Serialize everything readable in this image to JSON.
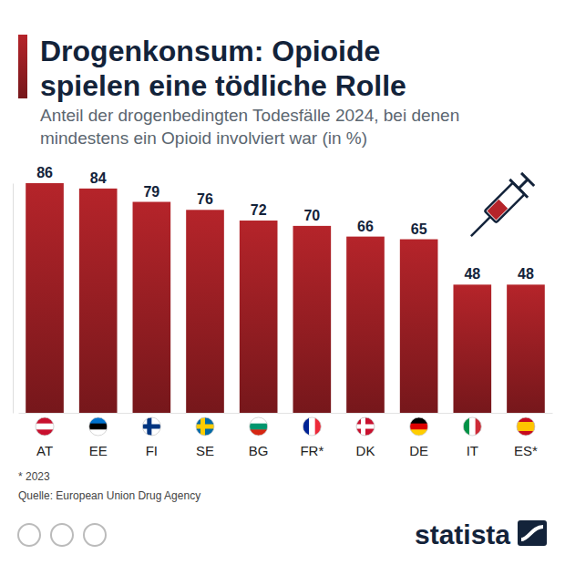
{
  "chart_data": {
    "type": "bar",
    "title": "Drogenkonsum: Opioide spielen eine tödliche Rolle",
    "subtitle": "Anteil der drogenbedingten Todesfälle 2024, bei denen mindestens ein Opioid involviert war (in %)",
    "categories": [
      "AT",
      "EE",
      "FI",
      "SE",
      "BG",
      "FR*",
      "DK",
      "DE",
      "IT",
      "ES*"
    ],
    "values": [
      86,
      84,
      79,
      76,
      72,
      70,
      66,
      65,
      48,
      48
    ],
    "color": "#b5242a",
    "ylim": [
      0,
      86
    ],
    "yticks": [],
    "grid": false,
    "data_labels": true,
    "tick_labels": "x",
    "footnote": "* 2023",
    "source": "Quelle: European Union Drug Agency",
    "logo": "statista"
  }
}
